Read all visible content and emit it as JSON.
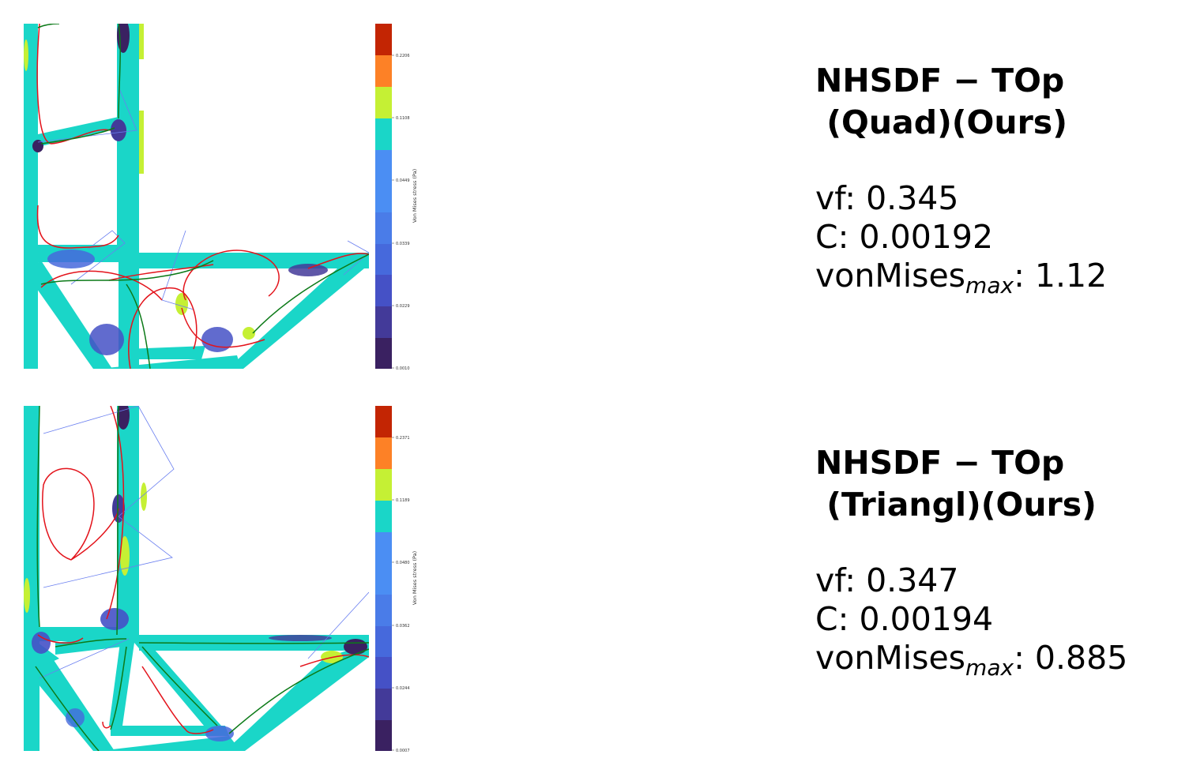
{
  "panels": [
    {
      "title_line1": "NHSDF − TOp",
      "title_line2": " (Quad)(Ours)",
      "vf_label": "vf: ",
      "vf_value": "0.345",
      "c_label": "C: ",
      "c_value": "0.00192",
      "vm_label": "vonMises",
      "vm_sub": "max",
      "vm_value": ": 1.12",
      "colorbar": {
        "label": "Von Mises stress (Pa)",
        "ticks": [
          "0.2206",
          "0.1108",
          "0.0449",
          "0.0339",
          "0.0229",
          "0.0010"
        ]
      }
    },
    {
      "title_line1": "NHSDF − TOp",
      "title_line2": " (Triangl)(Ours)",
      "vf_label": "vf: ",
      "vf_value": "0.347",
      "c_label": "C: ",
      "c_value": "0.00194",
      "vm_label": "vonMises",
      "vm_sub": "max",
      "vm_value": ": 0.885",
      "colorbar": {
        "label": "Von Mises stress (Pa)",
        "ticks": [
          "0.2371",
          "0.1189",
          "0.0480",
          "0.0362",
          "0.0244",
          "0.0007"
        ]
      }
    }
  ],
  "colors": {
    "colormap": [
      "#3a2161",
      "#433a99",
      "#4551c6",
      "#4669dc",
      "#4a7ce8",
      "#4b8ef3",
      "#1ad6c8",
      "#c5f034",
      "#fd8126",
      "#c32503"
    ],
    "structure": "#1ad6c8",
    "low_stress": "#4551c6",
    "high_stress": "#c5f034",
    "curve_red": "#e3131b",
    "curve_green": "#0c7a18",
    "control_blue": "#6a7ff0"
  }
}
